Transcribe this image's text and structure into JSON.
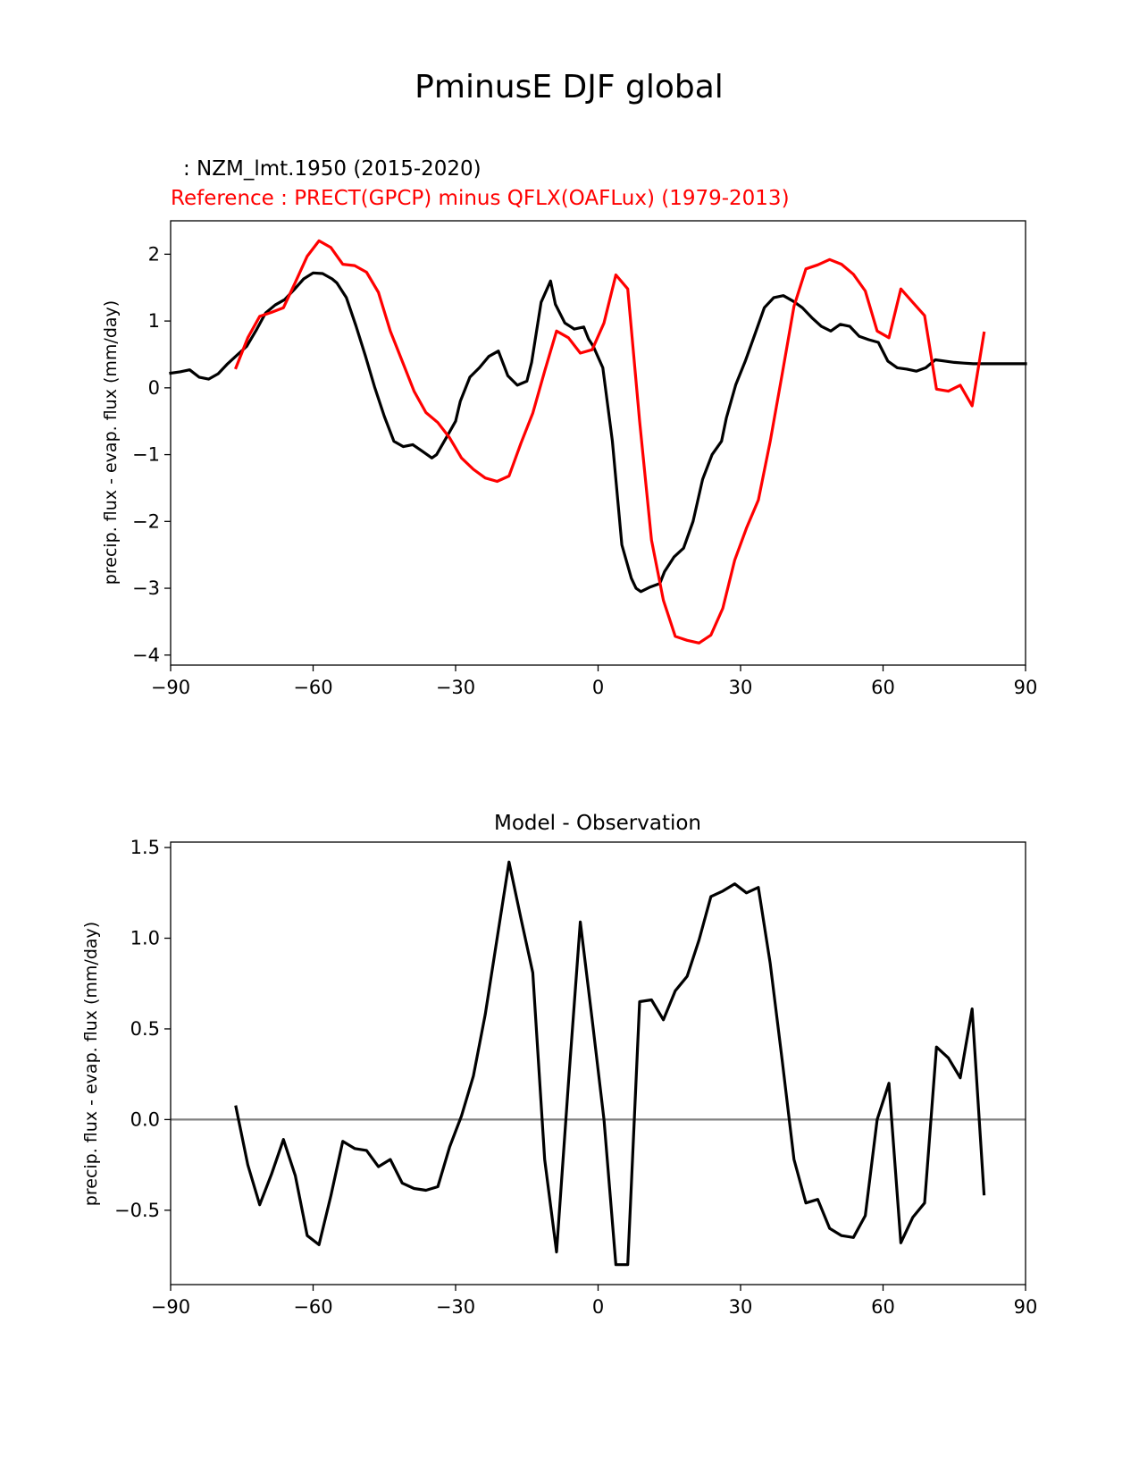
{
  "suptitle": "PminusE DJF global",
  "chart_data": [
    {
      "type": "line",
      "legend": {
        "model": ": NZM_lmt.1950 (2015-2020)",
        "reference": "Reference : PRECT(GPCP) minus QFLX(OAFLux) (1979-2013)"
      },
      "xlabel": "",
      "ylabel": "precip. flux - evap. flux (mm/day)",
      "xlim": [
        -90,
        90
      ],
      "ylim": [
        -4.15,
        2.5
      ],
      "xticks": [
        -90,
        -60,
        -30,
        0,
        30,
        60,
        90
      ],
      "xtick_labels": [
        "−90",
        "−60",
        "−30",
        "0",
        "30",
        "60",
        "90"
      ],
      "yticks": [
        2,
        1,
        0,
        -1,
        -2,
        -3,
        -4
      ],
      "ytick_labels": [
        "2",
        "1",
        "0",
        "−1",
        "−2",
        "−3",
        "−4"
      ],
      "series": [
        {
          "name": "NZM_lmt.1950 (2015-2020)",
          "color": "#000000",
          "x": [
            -90,
            -88,
            -86,
            -84,
            -82,
            -80,
            -78,
            -76,
            -74,
            -72,
            -70,
            -68,
            -66,
            -64,
            -62,
            -60,
            -58,
            -56,
            -55,
            -53,
            -51,
            -49,
            -47,
            -45,
            -43,
            -41,
            -39,
            -37,
            -35,
            -34,
            -32,
            -30,
            -29,
            -27,
            -25,
            -23,
            -21,
            -19,
            -17,
            -15,
            -14,
            -12,
            -10,
            -9,
            -7,
            -5,
            -3,
            -2,
            -1,
            1,
            3,
            5,
            7,
            8,
            9,
            11,
            13,
            14,
            16,
            18,
            20,
            22,
            24,
            26,
            27,
            29,
            31,
            33,
            35,
            37,
            39,
            41,
            43,
            45,
            47,
            49,
            51,
            53,
            55,
            57,
            59,
            61,
            63,
            65,
            67,
            69,
            71,
            73,
            75,
            77,
            79,
            81,
            84,
            87,
            90
          ],
          "values": [
            0.22,
            0.24,
            0.27,
            0.16,
            0.13,
            0.21,
            0.36,
            0.49,
            0.62,
            0.86,
            1.12,
            1.24,
            1.32,
            1.47,
            1.63,
            1.72,
            1.71,
            1.63,
            1.57,
            1.35,
            0.93,
            0.48,
            0.0,
            -0.43,
            -0.8,
            -0.88,
            -0.85,
            -0.95,
            -1.05,
            -1.0,
            -0.75,
            -0.5,
            -0.2,
            0.16,
            0.3,
            0.47,
            0.55,
            0.18,
            0.04,
            0.1,
            0.38,
            1.28,
            1.6,
            1.25,
            0.97,
            0.88,
            0.91,
            0.73,
            0.62,
            0.3,
            -0.8,
            -2.35,
            -2.85,
            -3.0,
            -3.05,
            -2.98,
            -2.93,
            -2.75,
            -2.53,
            -2.4,
            -2.0,
            -1.37,
            -1.0,
            -0.8,
            -0.45,
            0.05,
            0.4,
            0.8,
            1.2,
            1.35,
            1.38,
            1.3,
            1.2,
            1.05,
            0.92,
            0.85,
            0.95,
            0.92,
            0.77,
            0.72,
            0.68,
            0.4,
            0.3,
            0.28,
            0.25,
            0.3,
            0.42,
            0.4,
            0.38,
            0.37,
            0.36,
            0.36,
            0.36,
            0.36,
            0.36
          ]
        },
        {
          "name": "Reference : PRECT(GPCP) minus QFLX(OAFLux) (1979-2013)",
          "color": "#ff0000",
          "x": [
            -76.25,
            -73.75,
            -71.25,
            -68.75,
            -66.25,
            -63.75,
            -61.25,
            -58.75,
            -56.25,
            -53.75,
            -51.25,
            -48.75,
            -46.25,
            -43.75,
            -41.25,
            -38.75,
            -36.25,
            -33.75,
            -31.25,
            -28.75,
            -26.25,
            -23.75,
            -21.25,
            -18.75,
            -16.25,
            -13.75,
            -11.25,
            -8.75,
            -6.25,
            -3.75,
            -1.25,
            1.25,
            3.75,
            6.25,
            8.75,
            11.25,
            13.75,
            16.25,
            18.75,
            21.25,
            23.75,
            26.25,
            28.75,
            31.25,
            33.75,
            36.25,
            38.75,
            41.25,
            43.75,
            46.25,
            48.75,
            51.25,
            53.75,
            56.25,
            58.75,
            61.25,
            63.75,
            66.25,
            68.75,
            71.25,
            73.75,
            76.25,
            78.75,
            81.25
          ],
          "values": [
            0.3,
            0.75,
            1.07,
            1.13,
            1.2,
            1.58,
            1.97,
            2.2,
            2.1,
            1.85,
            1.83,
            1.73,
            1.43,
            0.85,
            0.4,
            -0.05,
            -0.37,
            -0.52,
            -0.75,
            -1.05,
            -1.22,
            -1.35,
            -1.4,
            -1.32,
            -0.83,
            -0.38,
            0.25,
            0.85,
            0.75,
            0.52,
            0.57,
            0.97,
            1.69,
            1.48,
            -0.5,
            -2.28,
            -3.18,
            -3.72,
            -3.78,
            -3.82,
            -3.7,
            -3.3,
            -2.58,
            -2.1,
            -1.68,
            -0.8,
            0.2,
            1.22,
            1.78,
            1.84,
            1.92,
            1.85,
            1.7,
            1.45,
            0.85,
            0.75,
            1.48,
            1.28,
            1.08,
            -0.02,
            -0.05,
            0.04,
            -0.27,
            0.82
          ]
        }
      ]
    },
    {
      "type": "line",
      "title": "Model - Observation",
      "xlabel": "",
      "ylabel": "precip. flux - evap. flux (mm/day)",
      "xlim": [
        -90,
        90
      ],
      "ylim": [
        -0.91,
        1.53
      ],
      "xticks": [
        -90,
        -60,
        -30,
        0,
        30,
        60,
        90
      ],
      "xtick_labels": [
        "−90",
        "−60",
        "−30",
        "0",
        "30",
        "60",
        "90"
      ],
      "yticks": [
        1.5,
        1.0,
        0.5,
        0.0,
        -0.5
      ],
      "ytick_labels": [
        "1.5",
        "1.0",
        "0.5",
        "0.0",
        "−0.5"
      ],
      "zero_line_color": "#808080",
      "series": [
        {
          "name": "Model - Observation",
          "color": "#000000",
          "x": [
            -76.25,
            -73.75,
            -71.25,
            -68.75,
            -66.25,
            -63.75,
            -61.25,
            -58.75,
            -56.25,
            -53.75,
            -51.25,
            -48.75,
            -46.25,
            -43.75,
            -41.25,
            -38.75,
            -36.25,
            -33.75,
            -31.25,
            -28.75,
            -26.25,
            -23.75,
            -21.25,
            -18.75,
            -16.25,
            -13.75,
            -11.25,
            -8.75,
            -6.25,
            -3.75,
            -1.25,
            1.25,
            3.75,
            6.25,
            8.75,
            11.25,
            13.75,
            16.25,
            18.75,
            21.25,
            23.75,
            26.25,
            28.75,
            31.25,
            33.75,
            36.25,
            38.75,
            41.25,
            43.75,
            46.25,
            48.75,
            51.25,
            53.75,
            56.25,
            58.75,
            61.25,
            63.75,
            66.25,
            68.75,
            71.25,
            73.75,
            76.25,
            78.75,
            81.25
          ],
          "values": [
            0.07,
            -0.25,
            -0.47,
            -0.3,
            -0.11,
            -0.31,
            -0.64,
            -0.69,
            -0.42,
            -0.12,
            -0.16,
            -0.17,
            -0.26,
            -0.22,
            -0.35,
            -0.38,
            -0.39,
            -0.37,
            -0.15,
            0.02,
            0.24,
            0.58,
            1.0,
            1.42,
            1.11,
            0.81,
            -0.22,
            -0.73,
            0.2,
            1.09,
            0.55,
            0.0,
            -0.8,
            -0.8,
            0.65,
            0.66,
            0.55,
            0.71,
            0.79,
            0.99,
            1.23,
            1.26,
            1.3,
            1.25,
            1.28,
            0.86,
            0.33,
            -0.22,
            -0.46,
            -0.44,
            -0.6,
            -0.64,
            -0.65,
            -0.53,
            0.0,
            0.2,
            -0.68,
            -0.54,
            -0.46,
            0.4,
            0.34,
            0.23,
            0.61,
            -0.41
          ]
        }
      ]
    }
  ]
}
